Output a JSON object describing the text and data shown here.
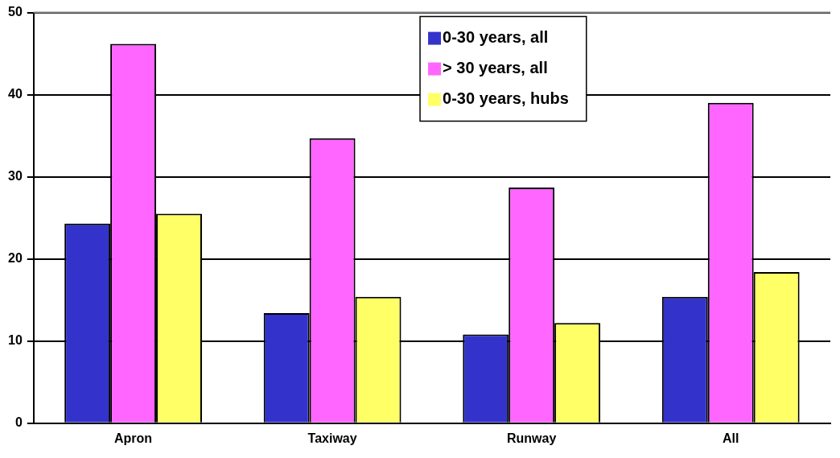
{
  "chart_data": {
    "type": "bar",
    "categories": [
      "Apron",
      "Taxiway",
      "Runway",
      "All"
    ],
    "series": [
      {
        "name": "0-30 years, all",
        "color": "#3333cc",
        "values": [
          24.3,
          13.4,
          10.8,
          15.4
        ]
      },
      {
        "name": "> 30 years, all",
        "color": "#ff66ff",
        "values": [
          46.2,
          34.7,
          28.7,
          39
        ]
      },
      {
        "name": "0-30 years, hubs",
        "color": "#ffff66",
        "values": [
          25.5,
          15.4,
          12.2,
          18.4
        ]
      }
    ],
    "ylim": [
      0,
      50
    ],
    "yticks": [
      0,
      10,
      20,
      30,
      40,
      50
    ],
    "grid": "y",
    "legend": "top"
  }
}
